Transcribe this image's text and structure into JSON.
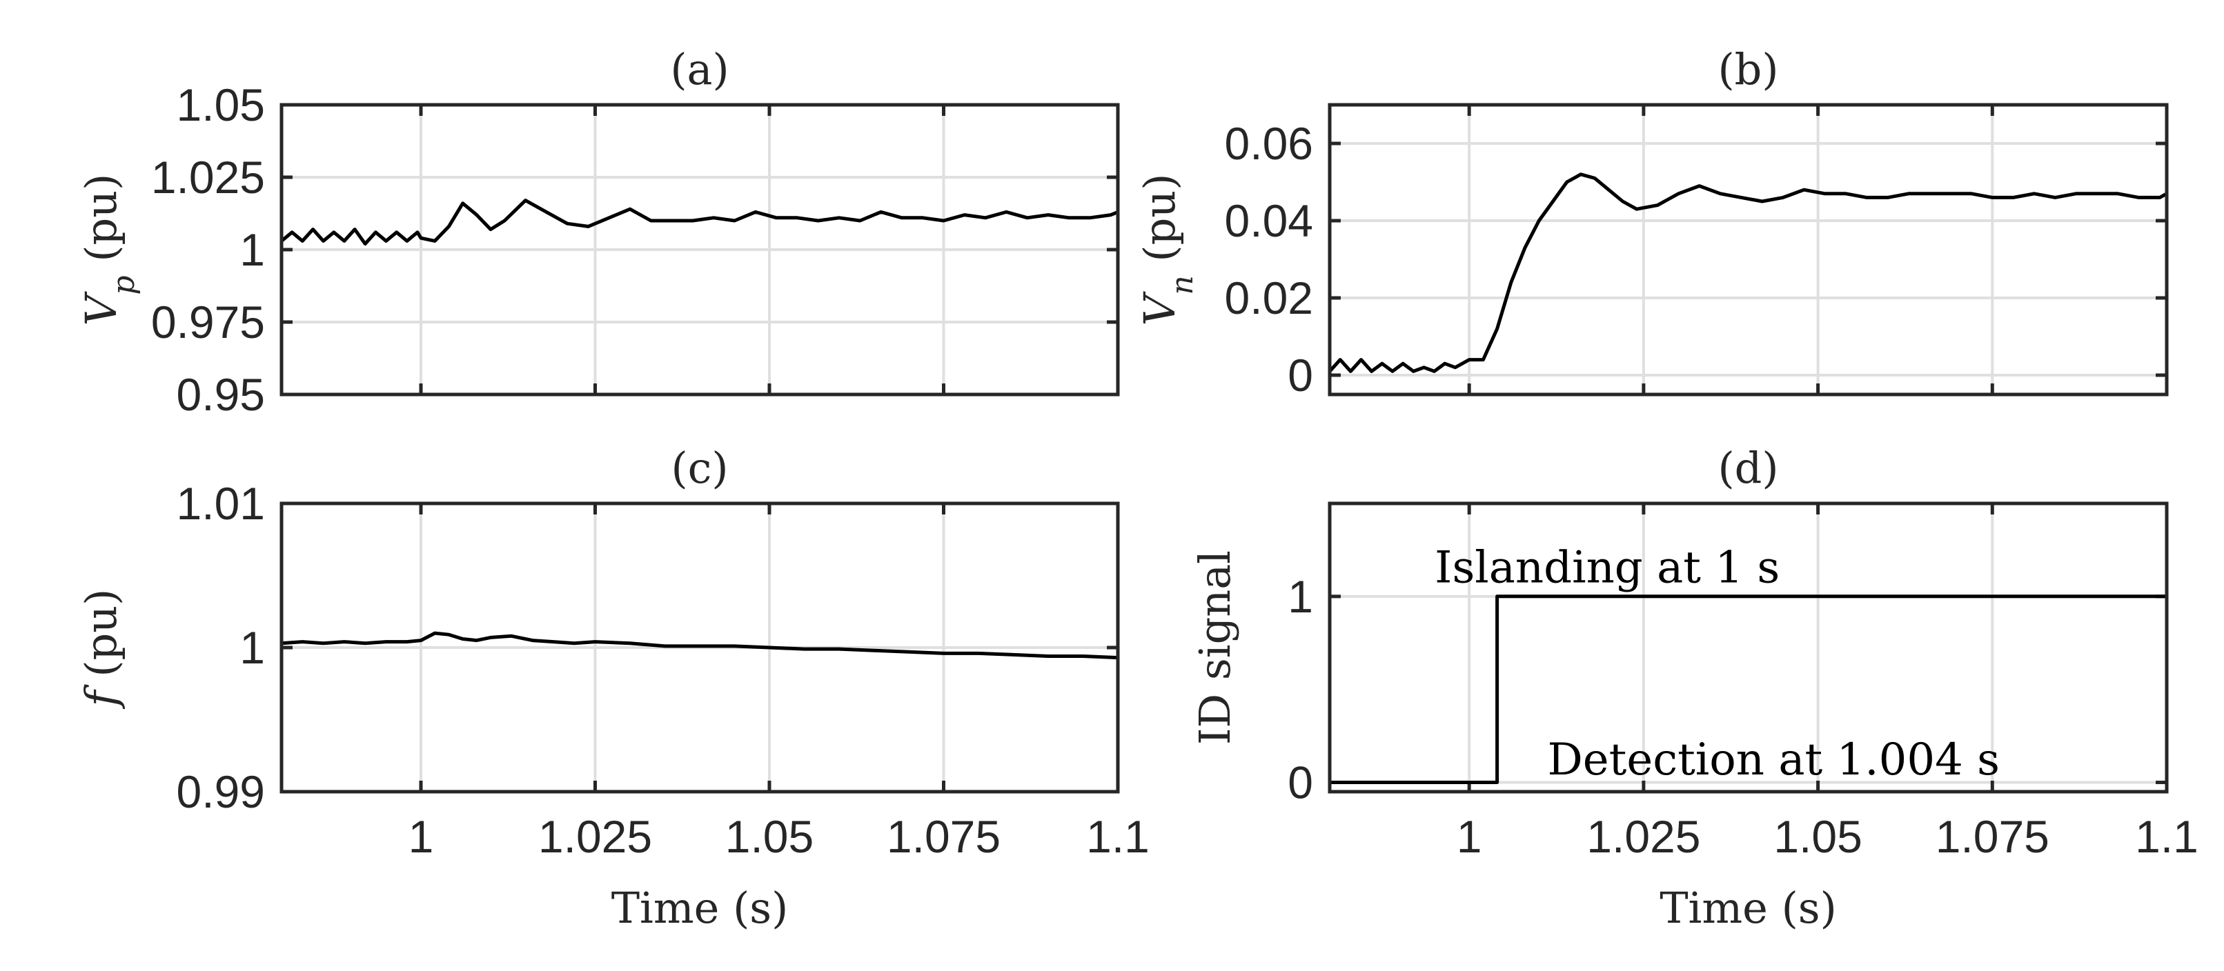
{
  "chart_data": [
    {
      "type": "line",
      "panel": "(a)",
      "title": "(a)",
      "xlabel": "",
      "ylabel_main": "V",
      "ylabel_sub": "p",
      "ylabel_unit": " (pu)",
      "xlim": [
        0.98,
        1.1
      ],
      "ylim": [
        0.95,
        1.05
      ],
      "xticks": [
        1,
        1.025,
        1.05,
        1.075,
        1.1
      ],
      "xticklabels": [],
      "yticks": [
        0.95,
        0.975,
        1,
        1.025,
        1.05
      ],
      "yticklabels": [
        "0.95",
        "0.975",
        "1",
        "1.025",
        "1.05"
      ],
      "grid": true,
      "series": [
        {
          "name": "Vp",
          "x": [
            0.98,
            0.9815,
            0.983,
            0.9845,
            0.986,
            0.9875,
            0.989,
            0.9905,
            0.992,
            0.9935,
            0.995,
            0.9965,
            0.998,
            0.9995,
            1.0,
            1.002,
            1.004,
            1.006,
            1.008,
            1.01,
            1.012,
            1.015,
            1.018,
            1.021,
            1.024,
            1.027,
            1.03,
            1.033,
            1.036,
            1.039,
            1.042,
            1.045,
            1.048,
            1.051,
            1.054,
            1.057,
            1.06,
            1.063,
            1.066,
            1.069,
            1.072,
            1.075,
            1.078,
            1.081,
            1.084,
            1.087,
            1.09,
            1.093,
            1.096,
            1.099,
            1.1
          ],
          "y": [
            1.003,
            1.006,
            1.003,
            1.007,
            1.003,
            1.006,
            1.003,
            1.007,
            1.002,
            1.006,
            1.003,
            1.006,
            1.003,
            1.006,
            1.004,
            1.003,
            1.008,
            1.016,
            1.012,
            1.007,
            1.01,
            1.017,
            1.013,
            1.009,
            1.008,
            1.011,
            1.014,
            1.01,
            1.01,
            1.01,
            1.011,
            1.01,
            1.013,
            1.011,
            1.011,
            1.01,
            1.011,
            1.01,
            1.013,
            1.011,
            1.011,
            1.01,
            1.012,
            1.011,
            1.013,
            1.011,
            1.012,
            1.011,
            1.011,
            1.012,
            1.013
          ]
        }
      ]
    },
    {
      "type": "line",
      "panel": "(b)",
      "title": "(b)",
      "xlabel": "",
      "ylabel_main": "V",
      "ylabel_sub": "n",
      "ylabel_unit": " (pu)",
      "xlim": [
        0.98,
        1.1
      ],
      "ylim": [
        -0.005,
        0.07
      ],
      "xticks": [
        1,
        1.025,
        1.05,
        1.075,
        1.1
      ],
      "xticklabels": [],
      "yticks": [
        0,
        0.02,
        0.04,
        0.06
      ],
      "yticklabels": [
        "0",
        "0.02",
        "0.04",
        "0.06"
      ],
      "grid": true,
      "series": [
        {
          "name": "Vn",
          "x": [
            0.98,
            0.9815,
            0.983,
            0.9845,
            0.986,
            0.9875,
            0.989,
            0.9905,
            0.992,
            0.9935,
            0.995,
            0.9965,
            0.998,
            1.0,
            1.002,
            1.004,
            1.006,
            1.008,
            1.01,
            1.012,
            1.014,
            1.016,
            1.018,
            1.02,
            1.022,
            1.024,
            1.027,
            1.03,
            1.033,
            1.036,
            1.039,
            1.042,
            1.045,
            1.048,
            1.051,
            1.054,
            1.057,
            1.06,
            1.063,
            1.066,
            1.069,
            1.072,
            1.075,
            1.078,
            1.081,
            1.084,
            1.087,
            1.09,
            1.093,
            1.096,
            1.099,
            1.1
          ],
          "y": [
            0.001,
            0.004,
            0.001,
            0.004,
            0.001,
            0.003,
            0.001,
            0.003,
            0.001,
            0.002,
            0.001,
            0.003,
            0.002,
            0.004,
            0.004,
            0.012,
            0.024,
            0.033,
            0.04,
            0.045,
            0.05,
            0.052,
            0.051,
            0.048,
            0.045,
            0.043,
            0.044,
            0.047,
            0.049,
            0.047,
            0.046,
            0.045,
            0.046,
            0.048,
            0.047,
            0.047,
            0.046,
            0.046,
            0.047,
            0.047,
            0.047,
            0.047,
            0.046,
            0.046,
            0.047,
            0.046,
            0.047,
            0.047,
            0.047,
            0.046,
            0.046,
            0.047
          ]
        }
      ]
    },
    {
      "type": "line",
      "panel": "(c)",
      "title": "(c)",
      "xlabel": "Time (s)",
      "ylabel_main": "f",
      "ylabel_sub": "",
      "ylabel_unit": " (pu)",
      "xlim": [
        0.98,
        1.1
      ],
      "ylim": [
        0.99,
        1.01
      ],
      "xticks": [
        1,
        1.025,
        1.05,
        1.075,
        1.1
      ],
      "xticklabels": [
        "1",
        "1.025",
        "1.05",
        "1.075",
        "1.1"
      ],
      "yticks": [
        0.99,
        1,
        1.01
      ],
      "yticklabels": [
        "0.99",
        "1",
        "1.01"
      ],
      "grid": true,
      "series": [
        {
          "name": "f",
          "x": [
            0.98,
            0.983,
            0.986,
            0.989,
            0.992,
            0.995,
            0.998,
            1.0,
            1.002,
            1.004,
            1.006,
            1.008,
            1.01,
            1.013,
            1.016,
            1.019,
            1.022,
            1.025,
            1.03,
            1.035,
            1.04,
            1.045,
            1.05,
            1.055,
            1.06,
            1.065,
            1.07,
            1.075,
            1.08,
            1.085,
            1.09,
            1.095,
            1.1
          ],
          "y": [
            1.0003,
            1.0004,
            1.0003,
            1.0004,
            1.0003,
            1.0004,
            1.0004,
            1.0005,
            1.001,
            1.0009,
            1.0006,
            1.0005,
            1.0007,
            1.0008,
            1.0005,
            1.0004,
            1.0003,
            1.0004,
            1.0003,
            1.0001,
            1.0001,
            1.0001,
            1.0,
            0.9999,
            0.9999,
            0.9998,
            0.9997,
            0.9996,
            0.9996,
            0.9995,
            0.9994,
            0.9994,
            0.9993
          ]
        }
      ]
    },
    {
      "type": "line",
      "panel": "(d)",
      "title": "(d)",
      "xlabel": "Time (s)",
      "ylabel_main": "ID signal",
      "ylabel_sub": "",
      "ylabel_unit": "",
      "xlim": [
        0.98,
        1.1
      ],
      "ylim": [
        -0.05,
        1.5
      ],
      "xticks": [
        1,
        1.025,
        1.05,
        1.075,
        1.1
      ],
      "xticklabels": [
        "1",
        "1.025",
        "1.05",
        "1.075",
        "1.1"
      ],
      "yticks": [
        0,
        1
      ],
      "yticklabels": [
        "0",
        "1"
      ],
      "grid": true,
      "annotations": [
        {
          "text": "Islanding at 1 s",
          "x": 1.0,
          "y": 1.15
        },
        {
          "text": "Detection at 1.004 s",
          "x": 1.012,
          "y": 0.08
        }
      ],
      "series": [
        {
          "name": "ID signal",
          "x": [
            0.98,
            1.004,
            1.004,
            1.1
          ],
          "y": [
            0,
            0,
            1,
            1
          ]
        }
      ]
    }
  ]
}
